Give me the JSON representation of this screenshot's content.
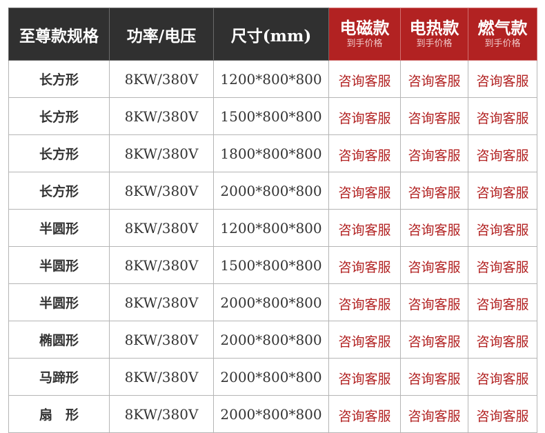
{
  "header": {
    "spec": "至尊款规格",
    "power": "功率/电压",
    "size": "尺寸(mm)",
    "induction": {
      "label": "电磁款",
      "sub": "到手价格"
    },
    "electric": {
      "label": "电热款",
      "sub": "到手价格"
    },
    "gas": {
      "label": "燃气款",
      "sub": "到手价格"
    }
  },
  "colors": {
    "header_dark": "#303030",
    "header_red": "#b22222",
    "price_text": "#b22222"
  },
  "rows": [
    {
      "shape": "长方形",
      "power": "8KW/380V",
      "size": "1200*800*800",
      "induction": "咨询客服",
      "electric": "咨询客服",
      "gas": "咨询客服"
    },
    {
      "shape": "长方形",
      "power": "8KW/380V",
      "size": "1500*800*800",
      "induction": "咨询客服",
      "electric": "咨询客服",
      "gas": "咨询客服"
    },
    {
      "shape": "长方形",
      "power": "8KW/380V",
      "size": "1800*800*800",
      "induction": "咨询客服",
      "electric": "咨询客服",
      "gas": "咨询客服"
    },
    {
      "shape": "长方形",
      "power": "8KW/380V",
      "size": "2000*800*800",
      "induction": "咨询客服",
      "electric": "咨询客服",
      "gas": "咨询客服"
    },
    {
      "shape": "半圆形",
      "power": "8KW/380V",
      "size": "1200*800*800",
      "induction": "咨询客服",
      "electric": "咨询客服",
      "gas": "咨询客服"
    },
    {
      "shape": "半圆形",
      "power": "8KW/380V",
      "size": "1500*800*800",
      "induction": "咨询客服",
      "electric": "咨询客服",
      "gas": "咨询客服"
    },
    {
      "shape": "半圆形",
      "power": "8KW/380V",
      "size": "2000*800*800",
      "induction": "咨询客服",
      "electric": "咨询客服",
      "gas": "咨询客服"
    },
    {
      "shape": "椭圆形",
      "power": "8KW/380V",
      "size": "2000*800*800",
      "induction": "咨询客服",
      "electric": "咨询客服",
      "gas": "咨询客服"
    },
    {
      "shape": "马蹄形",
      "power": "8KW/380V",
      "size": "2000*800*800",
      "induction": "咨询客服",
      "electric": "咨询客服",
      "gas": "咨询客服"
    },
    {
      "shape": "扇　形",
      "power": "8KW/380V",
      "size": "2000*800*800",
      "induction": "咨询客服",
      "electric": "咨询客服",
      "gas": "咨询客服"
    }
  ]
}
